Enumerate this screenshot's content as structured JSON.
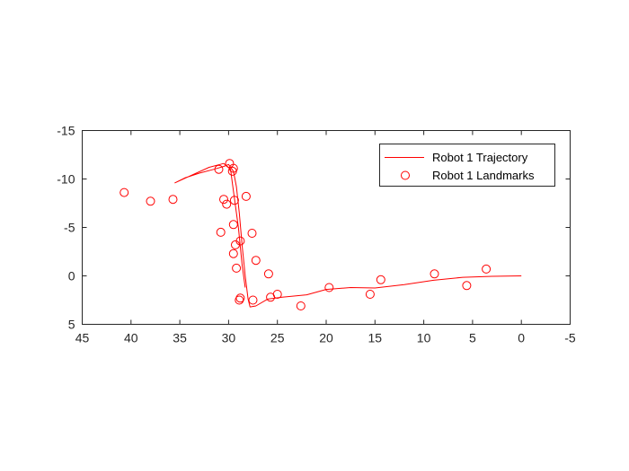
{
  "chart_data": {
    "type": "scatter",
    "title": "",
    "xlabel": "",
    "ylabel": "",
    "xlim": [
      -5,
      45
    ],
    "ylim": [
      -15,
      5
    ],
    "x_reversed": true,
    "y_reversed": true,
    "grid": false,
    "legend_location": "top-right",
    "x_ticks": [
      45,
      40,
      35,
      30,
      25,
      20,
      15,
      10,
      5,
      0,
      -5
    ],
    "y_ticks": [
      -15,
      -10,
      -5,
      0,
      5
    ],
    "series": [
      {
        "name": "Robot 1 Trajectory",
        "style": "line",
        "color": "#ff0000",
        "points": [
          [
            0.0,
            0.0
          ],
          [
            3.0,
            0.05
          ],
          [
            6.0,
            0.15
          ],
          [
            9.0,
            0.45
          ],
          [
            12.0,
            0.9
          ],
          [
            15.0,
            1.25
          ],
          [
            17.5,
            1.2
          ],
          [
            20.0,
            1.4
          ],
          [
            22.0,
            1.95
          ],
          [
            24.5,
            2.2
          ],
          [
            26.0,
            2.4
          ],
          [
            27.2,
            3.1
          ],
          [
            27.8,
            3.2
          ],
          [
            28.0,
            2.4
          ],
          [
            28.3,
            0.0
          ],
          [
            28.6,
            -3.0
          ],
          [
            28.9,
            -6.5
          ],
          [
            29.2,
            -9.2
          ],
          [
            29.5,
            -10.8
          ],
          [
            30.0,
            -11.5
          ],
          [
            30.5,
            -11.3
          ],
          [
            31.5,
            -11.0
          ],
          [
            33.0,
            -10.6
          ],
          [
            34.5,
            -10.1
          ],
          [
            35.5,
            -9.6
          ],
          [
            34.0,
            -10.3
          ],
          [
            32.0,
            -11.2
          ],
          [
            30.5,
            -11.6
          ],
          [
            29.8,
            -11.0
          ],
          [
            29.6,
            -9.5
          ],
          [
            29.0,
            -5.0
          ],
          [
            28.6,
            -1.0
          ],
          [
            28.3,
            1.2
          ]
        ]
      },
      {
        "name": "Robot 1 Landmarks",
        "style": "marker",
        "marker": "circle",
        "color": "#ff0000",
        "points": [
          [
            40.7,
            -8.6
          ],
          [
            38.0,
            -7.7
          ],
          [
            35.7,
            -7.9
          ],
          [
            31.0,
            -11.0
          ],
          [
            30.5,
            -7.9
          ],
          [
            30.2,
            -7.4
          ],
          [
            29.9,
            -11.6
          ],
          [
            29.6,
            -10.8
          ],
          [
            29.5,
            -11.1
          ],
          [
            29.4,
            -7.8
          ],
          [
            29.5,
            -5.3
          ],
          [
            29.3,
            -3.2
          ],
          [
            29.5,
            -2.3
          ],
          [
            29.2,
            -0.8
          ],
          [
            28.8,
            -3.6
          ],
          [
            28.2,
            -8.2
          ],
          [
            30.8,
            -4.5
          ],
          [
            27.6,
            -4.4
          ],
          [
            27.2,
            -1.6
          ],
          [
            25.9,
            -0.2
          ],
          [
            28.8,
            2.3
          ],
          [
            28.9,
            2.5
          ],
          [
            27.5,
            2.5
          ],
          [
            25.7,
            2.2
          ],
          [
            25.0,
            1.9
          ],
          [
            22.6,
            3.1
          ],
          [
            19.7,
            1.2
          ],
          [
            15.5,
            1.9
          ],
          [
            14.4,
            0.4
          ],
          [
            8.9,
            -0.2
          ],
          [
            5.6,
            1.0
          ],
          [
            3.6,
            -0.7
          ]
        ]
      }
    ]
  }
}
